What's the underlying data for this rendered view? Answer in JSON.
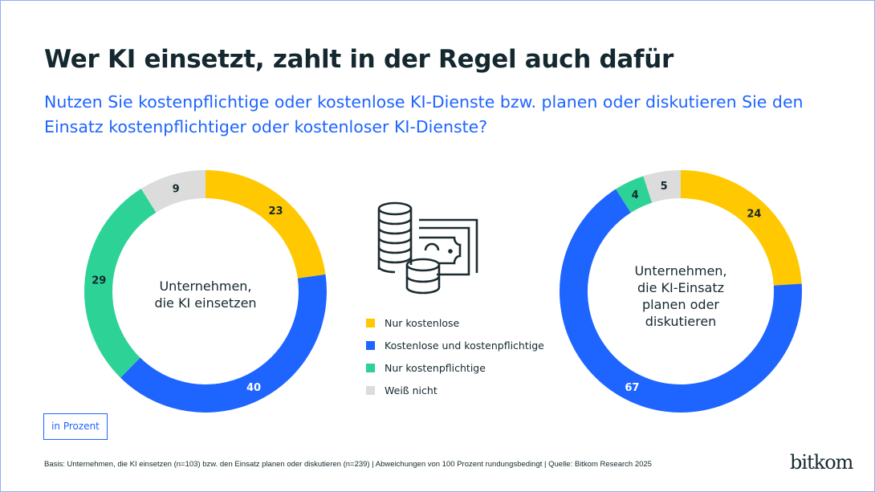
{
  "title": "Wer KI einsetzt, zahlt in der Regel auch dafür",
  "subtitle": "Nutzen Sie kostenpflichtige oder kostenlose KI-Dienste bzw. planen oder diskutieren Sie den Einsatz kostenpflichtiger oder kostenloser KI-Dienste?",
  "unit_label": "in Prozent",
  "footnote": "Basis: Unternehmen, die KI einsetzen  (n=103) bzw. den Einsatz planen oder diskutieren (n=239) | Abweichungen von 100 Prozent rundungsbedingt | Quelle: Bitkom Research 2025",
  "logo": "bitkom",
  "icon": "coins-and-banknotes-icon",
  "legend": [
    {
      "label": "Nur kostenlose",
      "color": "#FFC800"
    },
    {
      "label": "Kostenlose und kostenpflichtige",
      "color": "#1E64FF"
    },
    {
      "label": "Nur kostenpflichtige",
      "color": "#2DD296"
    },
    {
      "label": "Weiß nicht",
      "color": "#DCDCDC"
    }
  ],
  "chart_data": [
    {
      "type": "pie",
      "title": "Unternehmen, die KI einsetzen",
      "categories": [
        "Nur kostenlose",
        "Kostenlose und kostenpflichtige",
        "Nur kostenpflichtige",
        "Weiß nicht"
      ],
      "values": [
        23,
        40,
        29,
        9
      ],
      "colors": [
        "#FFC800",
        "#1E64FF",
        "#2DD296",
        "#DCDCDC"
      ],
      "donut": true
    },
    {
      "type": "pie",
      "title": "Unternehmen, die KI-Einsatz planen oder diskutieren",
      "categories": [
        "Nur kostenlose",
        "Kostenlose und kostenpflichtige",
        "Nur kostenpflichtige",
        "Weiß nicht"
      ],
      "values": [
        24,
        67,
        4,
        5
      ],
      "colors": [
        "#FFC800",
        "#1E64FF",
        "#2DD296",
        "#DCDCDC"
      ],
      "donut": true
    }
  ]
}
